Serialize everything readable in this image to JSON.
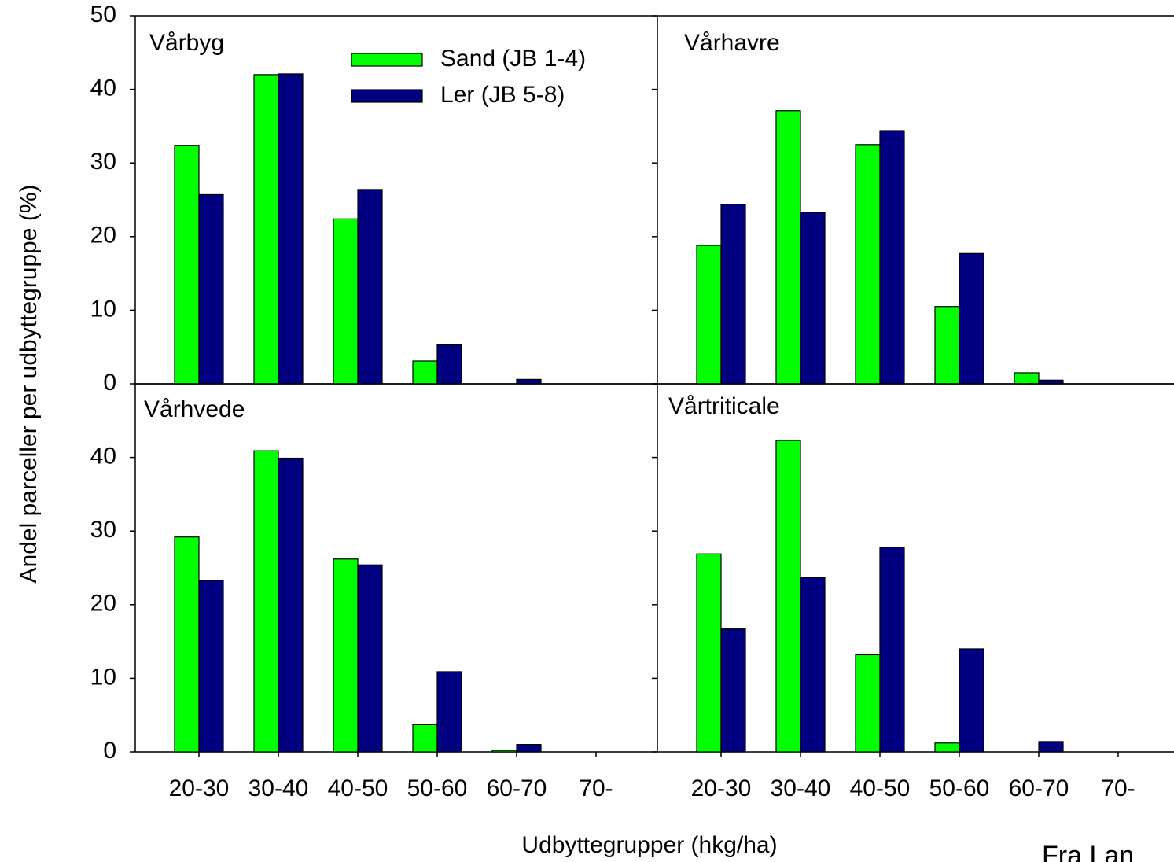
{
  "y_label": "Andel parceller per udbyttegruppe (%)",
  "x_label": "Udbyttegrupper (hkg/ha)",
  "source": "Fra Lan",
  "chart_data": [
    {
      "type": "bar",
      "title": "Vårbyg",
      "legend": "top",
      "categories": [
        null,
        null,
        null,
        null,
        null,
        null
      ],
      "series": [
        {
          "name": "Sand (JB 1-4)",
          "color": "#00ff00",
          "values": [
            32.4,
            42.0,
            22.4,
            3.1,
            0,
            0
          ]
        },
        {
          "name": "Ler (JB 5-8)",
          "color": "#000080",
          "values": [
            25.7,
            42.1,
            26.4,
            5.3,
            0.6,
            0
          ]
        }
      ],
      "ylim": [
        0,
        50
      ],
      "yticks": [
        0,
        10,
        20,
        30,
        40,
        50
      ],
      "tick_labels": true
    },
    {
      "type": "bar",
      "title": "Vårhavre",
      "categories": [
        null,
        null,
        null,
        null,
        null,
        null
      ],
      "series": [
        {
          "color": "#00ff00",
          "values": [
            18.8,
            37.1,
            32.5,
            10.5,
            1.5,
            0
          ]
        },
        {
          "color": "#000080",
          "values": [
            24.4,
            23.3,
            34.4,
            17.7,
            0.5,
            0
          ]
        }
      ],
      "ylim": [
        0,
        50
      ],
      "yticks": [
        0,
        10,
        20,
        30,
        40,
        50
      ],
      "tick_labels": false
    },
    {
      "type": "bar",
      "title": "Vårhvede",
      "categories": [
        "20-30",
        "30-40",
        "40-50",
        "50-60",
        "60-70",
        "70-"
      ],
      "series": [
        {
          "color": "#00ff00",
          "values": [
            29.2,
            40.9,
            26.2,
            3.7,
            0.2,
            0
          ]
        },
        {
          "color": "#000080",
          "values": [
            23.3,
            39.9,
            25.4,
            10.9,
            1.0,
            0
          ]
        }
      ],
      "ylim": [
        0,
        50
      ],
      "yticks": [
        0,
        10,
        20,
        30,
        40
      ],
      "tick_labels": true
    },
    {
      "type": "bar",
      "title": "Vårtriticale",
      "categories": [
        "20-30",
        "30-40",
        "40-50",
        "50-60",
        "60-70",
        "70-"
      ],
      "series": [
        {
          "color": "#00ff00",
          "values": [
            26.9,
            42.3,
            13.2,
            1.2,
            0,
            0
          ]
        },
        {
          "color": "#000080",
          "values": [
            16.7,
            23.7,
            27.8,
            14.0,
            1.4,
            0
          ]
        }
      ],
      "ylim": [
        0,
        50
      ],
      "yticks": [
        0,
        10,
        20,
        30,
        40,
        50
      ],
      "tick_labels": false
    }
  ]
}
